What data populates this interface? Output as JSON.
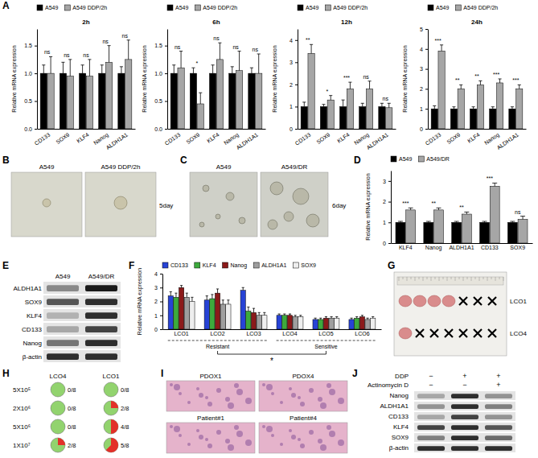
{
  "panel_labels": [
    "A",
    "B",
    "C",
    "D",
    "E",
    "F",
    "G",
    "H",
    "I",
    "J"
  ],
  "chart_data": [
    {
      "type": "bar",
      "title": "2h",
      "y_label": "Relative mRNA expression",
      "categories": [
        "CD133",
        "SOX9",
        "KLF4",
        "Nanog",
        "ALDH1A1"
      ],
      "series": [
        {
          "name": "A549",
          "color": "#000000",
          "values": [
            1,
            1,
            1,
            1,
            1
          ],
          "errors": [
            0.15,
            0.2,
            0.15,
            0.15,
            0.12
          ]
        },
        {
          "name": "A549 DDP/2h",
          "color": "#a6a6a6",
          "values": [
            1.0,
            0.95,
            0.95,
            1.2,
            1.25
          ],
          "errors": [
            0.3,
            0.3,
            0.3,
            0.3,
            0.35
          ]
        }
      ],
      "ylim": [
        0,
        1.8
      ],
      "yticks": [
        {
          "value": 0,
          "label": "0.0"
        },
        0.5,
        {
          "value": 1,
          "label": "1.0"
        },
        1.5
      ],
      "significance": [
        "ns",
        "ns",
        "ns",
        "ns",
        "ns"
      ],
      "legend": "top"
    },
    {
      "type": "bar",
      "title": "6h",
      "y_label": "Relative mRNA expression",
      "categories": [
        "CD133",
        "SOX9",
        "KLF4",
        "Nanog",
        "ALDH1A1"
      ],
      "series": [
        {
          "name": "A549",
          "color": "#000000",
          "values": [
            1,
            1,
            1,
            1,
            1
          ],
          "errors": [
            0.15,
            0.1,
            0.15,
            0.12,
            0.1
          ]
        },
        {
          "name": "A549 DDP/2h",
          "color": "#a6a6a6",
          "values": [
            1.1,
            0.45,
            1.25,
            1.05,
            1.0
          ],
          "errors": [
            0.3,
            0.2,
            0.3,
            0.35,
            0.35
          ]
        }
      ],
      "ylim": [
        0,
        1.8
      ],
      "yticks": [
        {
          "value": 0,
          "label": "0.0"
        },
        0.5,
        {
          "value": 1,
          "label": "1.0"
        },
        1.5
      ],
      "significance": [
        "ns",
        "*",
        "ns",
        "ns",
        "ns"
      ],
      "legend": "top"
    },
    {
      "type": "bar",
      "title": "12h",
      "y_label": "Relative mRNA expression",
      "categories": [
        "CD133",
        "SOX9",
        "KLF4",
        "Nanog",
        "ALDH1A1"
      ],
      "series": [
        {
          "name": "A549",
          "color": "#000000",
          "values": [
            1,
            1,
            1,
            1,
            1
          ],
          "errors": [
            0.2,
            0.1,
            0.3,
            0.15,
            0.15
          ]
        },
        {
          "name": "A549 DDP/2h",
          "color": "#a6a6a6",
          "values": [
            3.4,
            1.3,
            1.8,
            1.8,
            0.95
          ],
          "errors": [
            0.4,
            0.2,
            0.3,
            0.35,
            0.2
          ]
        }
      ],
      "ylim": [
        0,
        4.5
      ],
      "yticks": [
        0,
        1,
        2,
        3,
        4
      ],
      "significance": [
        "**",
        "*",
        "***",
        "ns",
        "ns"
      ],
      "legend": "top"
    },
    {
      "type": "bar",
      "title": "24h",
      "y_label": "Relative mRNA expression",
      "categories": [
        "CD133",
        "SOX9",
        "KLF4",
        "Nanog",
        "ALDH1A1"
      ],
      "series": [
        {
          "name": "A549",
          "color": "#000000",
          "values": [
            1,
            1,
            1,
            1,
            1
          ],
          "errors": [
            0.15,
            0.1,
            0.1,
            0.1,
            0.1
          ]
        },
        {
          "name": "A549 DDP/2h",
          "color": "#a6a6a6",
          "values": [
            3.9,
            2.0,
            2.2,
            2.3,
            2.0
          ],
          "errors": [
            0.3,
            0.2,
            0.2,
            0.2,
            0.2
          ]
        }
      ],
      "ylim": [
        0,
        5
      ],
      "yticks": [
        0,
        1,
        2,
        3,
        4,
        5
      ],
      "significance": [
        "***",
        "**",
        "**",
        "***",
        "***"
      ],
      "legend": "top"
    },
    {
      "type": "bar",
      "y_label": "Relative mRNA expression",
      "categories": [
        "KLF4",
        "Nanog",
        "ALDH1A1",
        "CD133",
        "SOX9"
      ],
      "series": [
        {
          "name": "A549",
          "color": "#000000",
          "values": [
            1,
            1,
            1,
            1,
            1
          ],
          "errors": [
            0.05,
            0.05,
            0.05,
            0.05,
            0.05
          ]
        },
        {
          "name": "A549/DR",
          "color": "#a6a6a6",
          "values": [
            1.6,
            1.6,
            1.4,
            2.75,
            1.15
          ],
          "errors": [
            0.1,
            0.1,
            0.1,
            0.15,
            0.15
          ]
        }
      ],
      "ylim": [
        0,
        3.5
      ],
      "yticks": [
        0,
        1,
        2,
        3
      ],
      "significance": [
        "***",
        "**",
        "**",
        "***",
        "ns"
      ],
      "legend": "top"
    },
    {
      "type": "bar",
      "y_label": "Relative mRNA expression",
      "categories": [
        "LCO1",
        "LCO2",
        "LCO3",
        "LCO4",
        "LCO5",
        "LCO6"
      ],
      "series": [
        {
          "name": "CD133",
          "color": "#2743d6",
          "values": [
            2.4,
            2.1,
            2.8,
            1.0,
            0.7,
            0.7
          ],
          "errors": [
            0.3,
            0.3,
            0.2,
            0.1,
            0.1,
            0.1
          ]
        },
        {
          "name": "KLF4",
          "color": "#3daa3d",
          "values": [
            2.3,
            2.2,
            1.3,
            1.0,
            0.7,
            0.8
          ],
          "errors": [
            0.3,
            0.3,
            0.3,
            0.1,
            0.1,
            0.1
          ]
        },
        {
          "name": "Nanog",
          "color": "#8b1a1a",
          "values": [
            3.0,
            2.6,
            1.2,
            1.0,
            0.8,
            0.9
          ],
          "errors": [
            0.15,
            0.3,
            0.3,
            0.1,
            0.1,
            0.1
          ]
        },
        {
          "name": "ALDH1A1",
          "color": "#9e9e9e",
          "values": [
            2.3,
            1.8,
            1.0,
            0.9,
            0.8,
            0.7
          ],
          "errors": [
            0.3,
            0.3,
            0.2,
            0.1,
            0.1,
            0.1
          ]
        },
        {
          "name": "SOX9",
          "color": "#eeeeee",
          "values": [
            2.0,
            1.8,
            1.0,
            0.9,
            0.8,
            0.8
          ],
          "errors": [
            0.3,
            0.3,
            0.2,
            0.1,
            0.1,
            0.1
          ]
        }
      ],
      "ylim": [
        0,
        4
      ],
      "yticks": [
        0,
        1,
        2,
        3,
        4
      ],
      "groups": [
        {
          "label": "Resistant",
          "categories": [
            "LCO1",
            "LCO2",
            "LCO3"
          ]
        },
        {
          "label": "Sensitive",
          "categories": [
            "LCO4",
            "LCO5",
            "LCO6"
          ]
        }
      ],
      "comparison": "*",
      "legend": "top"
    },
    {
      "type": "pie_grid",
      "columns": [
        "LCO4",
        "LCO1"
      ],
      "rows": [
        "5X10⁵",
        "2X10⁶",
        "5X10⁶",
        "1X10⁷"
      ],
      "cells": [
        [
          {
            "positive": 0,
            "total": 8,
            "label": "0/8"
          },
          {
            "positive": 0,
            "total": 8,
            "label": "0/8"
          }
        ],
        [
          {
            "positive": 0,
            "total": 8,
            "label": "0/8"
          },
          {
            "positive": 2,
            "total": 8,
            "label": "2/8"
          }
        ],
        [
          {
            "positive": 0,
            "total": 8,
            "label": "0/8"
          },
          {
            "positive": 4,
            "total": 8,
            "label": "4/8"
          }
        ],
        [
          {
            "positive": 2,
            "total": 8,
            "label": "2/8"
          },
          {
            "positive": 5,
            "total": 8,
            "label": "5/8"
          }
        ]
      ]
    }
  ],
  "images": [
    {
      "labels": [
        "A549",
        "A549 DDP/2h"
      ],
      "caption": "5day"
    },
    {
      "labels": [
        "A549",
        "A549/DR"
      ],
      "caption": "6day"
    },
    {
      "labels": [
        "LCO1",
        "LCO4"
      ]
    },
    {
      "labels": [
        "PDOX1",
        "PDOX4",
        "Patient#1",
        "Patient#4"
      ]
    }
  ],
  "blots": [
    {
      "columns": [
        "A549",
        "A549/DR"
      ],
      "rows": [
        "ALDH1A1",
        "SOX9",
        "KLF4",
        "CD133",
        "Nanog",
        "β-actin"
      ]
    },
    {
      "conditions": [
        {
          "name": "DDP",
          "signs": [
            "−",
            "+",
            "+"
          ]
        },
        {
          "name": "Actinomycin D",
          "signs": [
            "−",
            "−",
            "+"
          ]
        }
      ],
      "rows": [
        "Nanog",
        "ALDH1A1",
        "CD133",
        "KLF4",
        "SOX9",
        "β-actin"
      ]
    }
  ]
}
